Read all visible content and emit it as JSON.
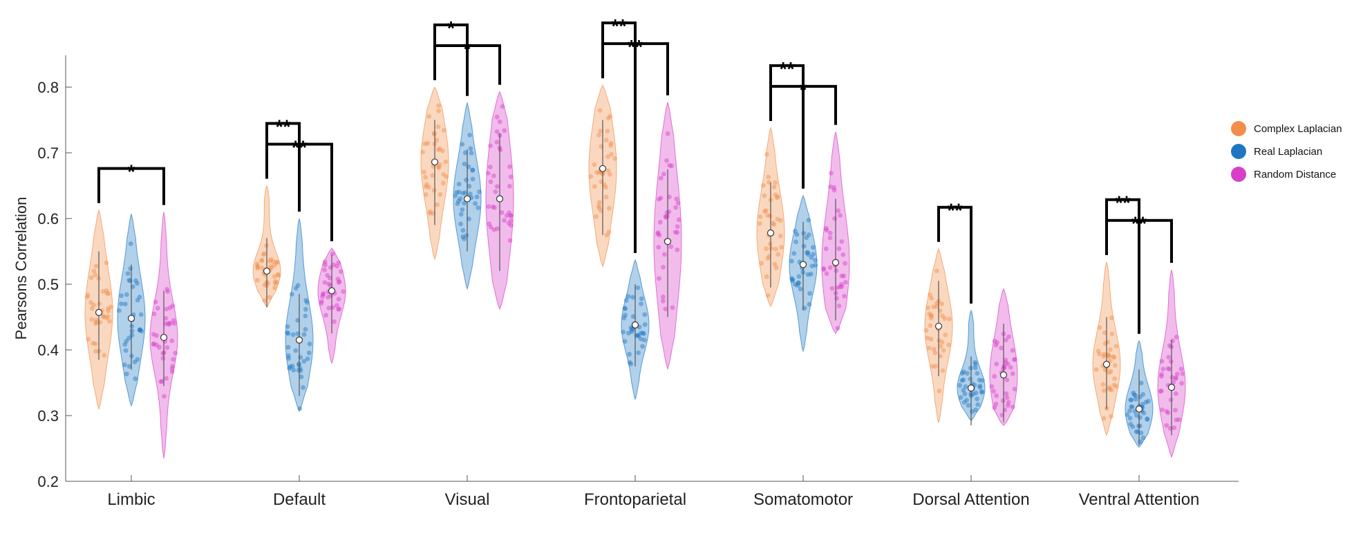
{
  "chart_data": {
    "type": "violin",
    "title": "",
    "xlabel": "",
    "ylabel": "Pearsons Correlation",
    "ylim": [
      0.2,
      0.85
    ],
    "yticks": [
      0.2,
      0.3,
      0.4,
      0.5,
      0.6,
      0.7,
      0.8
    ],
    "grid": false,
    "legend_position": "right",
    "categories": [
      "Limbic",
      "Default",
      "Visual",
      "Frontoparietal",
      "Somatomotor",
      "Dorsal Attention",
      "Ventral Attention"
    ],
    "series": [
      {
        "name": "Complex Laplacian",
        "color": "#F28E4B",
        "median": [
          0.457,
          0.52,
          0.686,
          0.676,
          0.578,
          0.436,
          0.378
        ],
        "min": [
          0.31,
          0.465,
          0.538,
          0.527,
          0.466,
          0.289,
          0.27
        ],
        "max": [
          0.613,
          0.65,
          0.8,
          0.803,
          0.738,
          0.554,
          0.534
        ],
        "q1": [
          0.415,
          0.495,
          0.62,
          0.605,
          0.525,
          0.39,
          0.34
        ],
        "q3": [
          0.52,
          0.54,
          0.72,
          0.72,
          0.625,
          0.475,
          0.42
        ]
      },
      {
        "name": "Real Laplacian",
        "color": "#1F77C4",
        "median": [
          0.448,
          0.415,
          0.63,
          0.438,
          0.53,
          0.342,
          0.31
        ],
        "min": [
          0.315,
          0.307,
          0.493,
          0.325,
          0.398,
          0.292,
          0.252
        ],
        "max": [
          0.607,
          0.6,
          0.776,
          0.537,
          0.635,
          0.46,
          0.414
        ],
        "q1": [
          0.4,
          0.36,
          0.58,
          0.405,
          0.49,
          0.315,
          0.285
        ],
        "q3": [
          0.5,
          0.455,
          0.675,
          0.47,
          0.565,
          0.36,
          0.34
        ]
      },
      {
        "name": "Random Distance",
        "color": "#D83FC8",
        "median": [
          0.419,
          0.49,
          0.63,
          0.565,
          0.533,
          0.362,
          0.343
        ],
        "min": [
          0.235,
          0.38,
          0.462,
          0.371,
          0.425,
          0.285,
          0.237
        ],
        "max": [
          0.61,
          0.555,
          0.793,
          0.777,
          0.732,
          0.493,
          0.522
        ],
        "q1": [
          0.375,
          0.455,
          0.55,
          0.48,
          0.475,
          0.32,
          0.3
        ],
        "q3": [
          0.46,
          0.515,
          0.7,
          0.645,
          0.6,
          0.41,
          0.385
        ]
      }
    ],
    "significance": [
      {
        "category": "Limbic",
        "from": "Complex Laplacian",
        "to": "Random Distance",
        "label": "*"
      },
      {
        "category": "Default",
        "from": "Complex Laplacian",
        "to": "Real Laplacian",
        "label": "**"
      },
      {
        "category": "Default",
        "from": "Complex Laplacian",
        "to": "Random Distance",
        "label": "**"
      },
      {
        "category": "Visual",
        "from": "Complex Laplacian",
        "to": "Real Laplacian",
        "label": "*"
      },
      {
        "category": "Visual",
        "from": "Complex Laplacian",
        "to": "Random Distance",
        "label": "*"
      },
      {
        "category": "Frontoparietal",
        "from": "Complex Laplacian",
        "to": "Real Laplacian",
        "label": "**"
      },
      {
        "category": "Frontoparietal",
        "from": "Complex Laplacian",
        "to": "Random Distance",
        "label": "**"
      },
      {
        "category": "Somatomotor",
        "from": "Complex Laplacian",
        "to": "Real Laplacian",
        "label": "**"
      },
      {
        "category": "Somatomotor",
        "from": "Complex Laplacian",
        "to": "Random Distance",
        "label": "*"
      },
      {
        "category": "Dorsal Attention",
        "from": "Complex Laplacian",
        "to": "Real Laplacian",
        "label": "**"
      },
      {
        "category": "Ventral Attention",
        "from": "Complex Laplacian",
        "to": "Real Laplacian",
        "label": "**"
      },
      {
        "category": "Ventral Attention",
        "from": "Complex Laplacian",
        "to": "Random Distance",
        "label": "**"
      }
    ]
  }
}
